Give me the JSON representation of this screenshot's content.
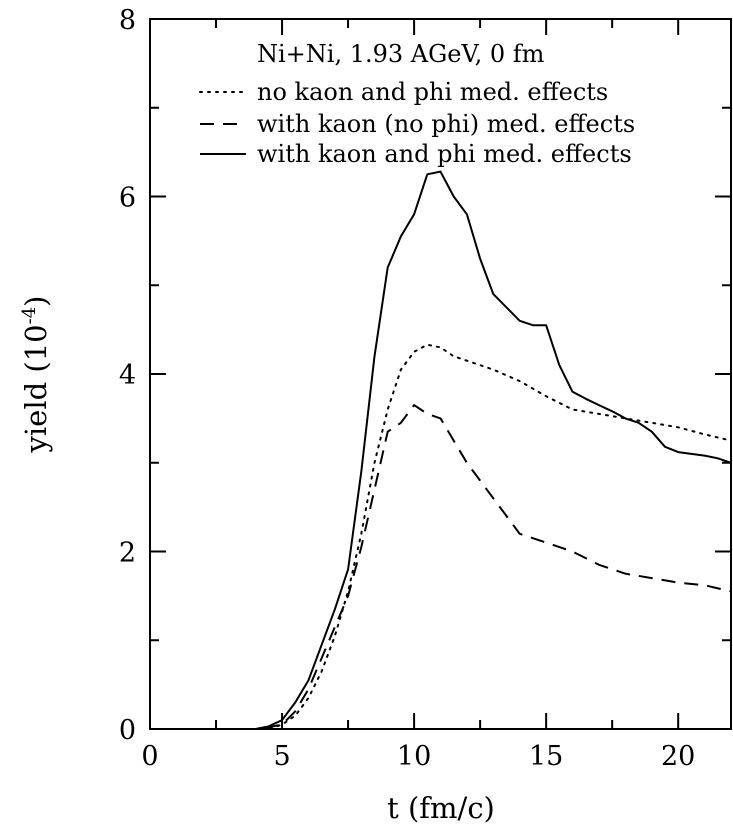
{
  "chart_data": {
    "type": "line",
    "xlabel": "t (fm/c)",
    "ylabel": "yield (10",
    "ylabel_exponent": "-4",
    "ylabel_close": ")",
    "xlim": [
      0,
      22
    ],
    "ylim": [
      0,
      8
    ],
    "x_ticks": [
      0,
      5,
      10,
      15,
      20
    ],
    "y_ticks": [
      0,
      2,
      4,
      6,
      8
    ],
    "x_ticklabels": [
      "0",
      "5",
      "10",
      "15",
      "20"
    ],
    "y_ticklabels": [
      "0",
      "2",
      "4",
      "6",
      "8"
    ],
    "grid": false,
    "legend_placement": "top-right",
    "annotation": "Ni+Ni, 1.93 AGeV, 0 fm",
    "series": [
      {
        "name": "no kaon and phi med. effects",
        "style": "dotted",
        "x": [
          0,
          4.5,
          5.0,
          5.5,
          6.0,
          6.5,
          7.0,
          7.5,
          8.0,
          8.5,
          9.0,
          9.5,
          10.0,
          10.5,
          11.0,
          11.5,
          12.0,
          13.0,
          14.0,
          15.0,
          16.0,
          17.0,
          18.0,
          19.0,
          20.0,
          21.0,
          22.0
        ],
        "y": [
          0,
          0,
          0.05,
          0.15,
          0.35,
          0.65,
          1.05,
          1.55,
          2.2,
          3.0,
          3.6,
          4.05,
          4.25,
          4.33,
          4.3,
          4.2,
          4.15,
          4.05,
          3.92,
          3.75,
          3.6,
          3.55,
          3.5,
          3.45,
          3.4,
          3.32,
          3.25
        ]
      },
      {
        "name": "with kaon (no phi) med. effects",
        "style": "dashed",
        "x": [
          0,
          4.0,
          4.5,
          5.0,
          5.5,
          6.0,
          6.5,
          7.0,
          7.5,
          8.0,
          8.5,
          9.0,
          9.5,
          10.0,
          10.5,
          11.0,
          11.5,
          12.0,
          12.5,
          13.0,
          13.5,
          14.0,
          15.0,
          16.0,
          17.0,
          18.0,
          19.0,
          20.0,
          21.0,
          22.0
        ],
        "y": [
          0,
          0,
          0.02,
          0.05,
          0.2,
          0.45,
          0.8,
          1.15,
          1.5,
          2.05,
          2.7,
          3.35,
          3.45,
          3.65,
          3.55,
          3.5,
          3.25,
          3.0,
          2.8,
          2.6,
          2.4,
          2.2,
          2.1,
          2.0,
          1.85,
          1.75,
          1.7,
          1.65,
          1.62,
          1.55
        ]
      },
      {
        "name": "with kaon and phi med. effects",
        "style": "solid",
        "x": [
          0,
          4.0,
          4.5,
          5.0,
          5.5,
          6.0,
          6.5,
          7.0,
          7.5,
          8.0,
          8.5,
          9.0,
          9.5,
          10.0,
          10.5,
          11.0,
          11.5,
          12.0,
          12.5,
          13.0,
          13.5,
          14.0,
          14.5,
          15.0,
          15.5,
          16.0,
          16.5,
          17.0,
          17.5,
          18.0,
          18.5,
          19.0,
          19.5,
          20.0,
          20.5,
          21.0,
          21.5,
          22.0
        ],
        "y": [
          0,
          0,
          0.03,
          0.1,
          0.3,
          0.55,
          0.95,
          1.35,
          1.8,
          2.9,
          4.2,
          5.2,
          5.55,
          5.8,
          6.25,
          6.28,
          6.0,
          5.8,
          5.3,
          4.9,
          4.75,
          4.6,
          4.55,
          4.55,
          4.1,
          3.8,
          3.72,
          3.65,
          3.58,
          3.5,
          3.45,
          3.35,
          3.18,
          3.12,
          3.1,
          3.08,
          3.05,
          3.0
        ]
      }
    ]
  }
}
